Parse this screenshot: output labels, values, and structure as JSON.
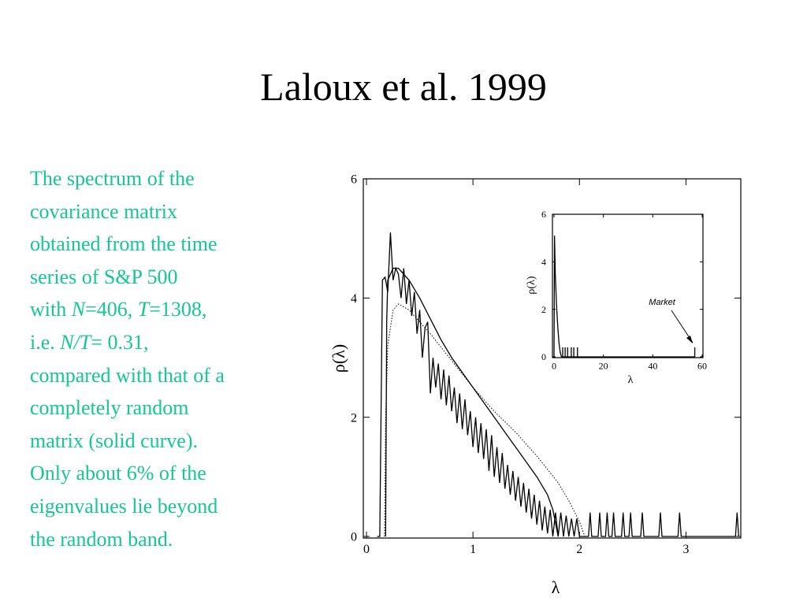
{
  "title": "Laloux et al. 1999",
  "description": [
    [
      {
        "text": "The spectrum of the"
      }
    ],
    [
      {
        "text": "covariance matrix"
      }
    ],
    [
      {
        "text": "obtained from the time"
      }
    ],
    [
      {
        "text": "series of S&P 500"
      }
    ],
    [
      {
        "text": "with "
      },
      {
        "text": "N",
        "italic": true
      },
      {
        "text": "=406, "
      },
      {
        "text": "T",
        "italic": true
      },
      {
        "text": "=1308,"
      }
    ],
    [
      {
        "text": "i.e. "
      },
      {
        "text": "N/T",
        "italic": true
      },
      {
        "text": "= 0.31,"
      }
    ],
    [
      {
        "text": "compared with that of a"
      }
    ],
    [
      {
        "text": "completely random"
      }
    ],
    [
      {
        "text": "matrix (solid curve)."
      }
    ],
    [
      {
        "text": "Only about 6% of the"
      }
    ],
    [
      {
        "text": "eigenvalues lie beyond"
      }
    ],
    [
      {
        "text": "the random band."
      }
    ]
  ],
  "chart_data": [
    {
      "type": "line",
      "xlabel": "λ",
      "ylabel": "ρ(λ)",
      "xlim": [
        0,
        3.5
      ],
      "ylim": [
        0,
        6
      ],
      "xticks": [
        0,
        1,
        2,
        3
      ],
      "yticks": [
        0,
        2,
        4,
        6
      ],
      "series": [
        {
          "color": "#000000",
          "style": "solid",
          "x": [
            0.1,
            0.125,
            0.15,
            0.175,
            0.2,
            0.225,
            0.25,
            0.275,
            0.3,
            0.325,
            0.35,
            0.375,
            0.4,
            0.425,
            0.45,
            0.475,
            0.5,
            0.525,
            0.55,
            0.575,
            0.6,
            0.625,
            0.65,
            0.675,
            0.7,
            0.725,
            0.75,
            0.775,
            0.8,
            0.825,
            0.85,
            0.875,
            0.9,
            0.925,
            0.95,
            0.975,
            1.0,
            1.025,
            1.05,
            1.075,
            1.1,
            1.125,
            1.15,
            1.175,
            1.2,
            1.225,
            1.25,
            1.275,
            1.3,
            1.325,
            1.35,
            1.375,
            1.4,
            1.425,
            1.45,
            1.475,
            1.5,
            1.525,
            1.55,
            1.575,
            1.6,
            1.625,
            1.65,
            1.675,
            1.7,
            1.725,
            1.75,
            1.775,
            1.8,
            1.825,
            1.85,
            1.875,
            1.9,
            1.925,
            1.95,
            1.975,
            2.0,
            2.085,
            2.1,
            2.115,
            2.175,
            2.19,
            2.205,
            2.245,
            2.26,
            2.275,
            2.305,
            2.32,
            2.335,
            2.395,
            2.41,
            2.425,
            2.465,
            2.48,
            2.495,
            2.575,
            2.59,
            2.605,
            2.745,
            2.76,
            2.775,
            2.925,
            2.94,
            2.955,
            3.465,
            3.48,
            3.495
          ],
          "values": [
            0,
            0,
            4.3,
            4.35,
            4.1,
            5.1,
            4.3,
            4.5,
            4.4,
            4.0,
            4.5,
            3.9,
            4.3,
            3.7,
            4.1,
            3.4,
            3.8,
            3.0,
            3.5,
            3.6,
            2.4,
            3.0,
            2.5,
            2.9,
            2.3,
            2.8,
            2.2,
            2.7,
            2.1,
            2.5,
            1.9,
            2.4,
            1.8,
            2.3,
            1.7,
            2.1,
            1.5,
            2.0,
            1.4,
            1.9,
            1.3,
            1.8,
            1.1,
            1.7,
            1.0,
            1.5,
            0.9,
            1.4,
            0.8,
            1.2,
            0.7,
            1.1,
            0.6,
            1.0,
            0.5,
            0.9,
            0.4,
            0.8,
            0.3,
            0.7,
            0.2,
            0.6,
            0.1,
            0.5,
            0.05,
            0.45,
            0,
            0.4,
            0,
            0.4,
            0,
            0.35,
            0,
            0.3,
            0,
            0.3,
            0,
            0,
            0.4,
            0,
            0,
            0.4,
            0,
            0,
            0.4,
            0,
            0,
            0.4,
            0,
            0,
            0.4,
            0,
            0,
            0.4,
            0,
            0,
            0.4,
            0,
            0,
            0.4,
            0,
            0,
            0.4,
            0,
            0,
            0.4,
            0
          ]
        },
        {
          "color": "#000000",
          "style": "solid",
          "x": [
            0.18,
            0.19,
            0.2,
            0.25,
            0.3,
            0.4,
            0.5,
            0.6,
            0.7,
            0.8,
            0.9,
            1.0,
            1.1,
            1.2,
            1.3,
            1.4,
            1.5,
            1.6,
            1.7,
            1.75,
            1.8
          ],
          "values": [
            0,
            3.6,
            4.3,
            4.5,
            4.5,
            4.3,
            4.0,
            3.65,
            3.3,
            3.0,
            2.75,
            2.5,
            2.25,
            2.0,
            1.75,
            1.5,
            1.25,
            1.0,
            0.7,
            0.45,
            0
          ]
        },
        {
          "color": "#000000",
          "style": "dotted",
          "x": [
            0.17,
            0.18,
            0.2,
            0.25,
            0.3,
            0.4,
            0.5,
            0.6,
            0.8,
            1.0,
            1.2,
            1.4,
            1.6,
            1.8,
            1.9,
            2.0,
            2.05
          ],
          "values": [
            0,
            2.0,
            3.2,
            3.8,
            3.9,
            3.8,
            3.6,
            3.4,
            2.95,
            2.5,
            2.1,
            1.75,
            1.35,
            0.9,
            0.6,
            0.25,
            0
          ]
        }
      ]
    },
    {
      "type": "line",
      "xlabel": "λ",
      "ylabel": "ρ(λ)",
      "xlim": [
        0,
        60
      ],
      "ylim": [
        0,
        6
      ],
      "xticks": [
        0,
        20,
        40,
        60
      ],
      "yticks": [
        0,
        2,
        4,
        6
      ],
      "annotations": [
        {
          "text": "Market"
        }
      ],
      "series": [
        {
          "color": "#000000",
          "style": "solid",
          "x": [
            0,
            0.2,
            0.5,
            1,
            1.5,
            2,
            2.5,
            3,
            3.5,
            3.5,
            3.5,
            4.5,
            4.5,
            4.5,
            5.5,
            5.5,
            5.5,
            7,
            7,
            7,
            8,
            8,
            8,
            9.5,
            9.5,
            9.5,
            57,
            57,
            57
          ],
          "values": [
            0,
            5.1,
            3.5,
            2.2,
            1.3,
            0.6,
            0.2,
            0,
            0,
            0.4,
            0,
            0,
            0.4,
            0,
            0,
            0.4,
            0,
            0,
            0.4,
            0,
            0,
            0.4,
            0,
            0,
            0.4,
            0,
            0,
            0.4,
            0
          ]
        }
      ]
    }
  ]
}
